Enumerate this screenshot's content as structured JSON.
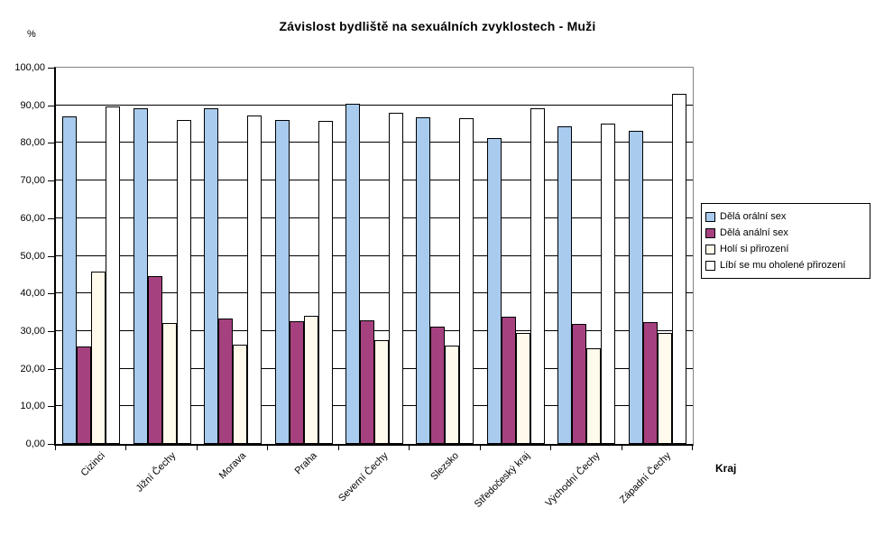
{
  "title": "Závislost bydliště na sexuálních zvyklostech - Muži",
  "chart_data": {
    "type": "bar",
    "title": "Závislost bydliště na sexuálních zvyklostech - Muži",
    "xlabel": "Kraj",
    "ylabel": "%",
    "ylim": [
      0,
      100
    ],
    "grid": true,
    "legend_position": "right",
    "y_ticks": [
      "100,00",
      "90,00",
      "80,00",
      "70,00",
      "60,00",
      "50,00",
      "40,00",
      "30,00",
      "20,00",
      "10,00",
      "0,00"
    ],
    "categories": [
      "Cizinci",
      "Jižní Čechy",
      "Morava",
      "Praha",
      "Severní Čechy",
      "Slezsko",
      "Středočeský kraj",
      "Východní Čechy",
      "Západní Čechy"
    ],
    "series": [
      {
        "name": "Dělá orální sex",
        "color": "#A8CBEE",
        "values": [
          87.0,
          89.2,
          89.2,
          86.2,
          90.5,
          86.8,
          81.3,
          84.5,
          83.1
        ]
      },
      {
        "name": "Dělá anální sex",
        "color": "#A6417F",
        "values": [
          26.0,
          44.6,
          33.4,
          32.7,
          32.9,
          31.1,
          33.7,
          32.0,
          32.3
        ]
      },
      {
        "name": "Holí si přirození",
        "color": "#FFFAEC",
        "values": [
          45.8,
          32.2,
          26.3,
          34.0,
          27.5,
          26.2,
          29.4,
          25.5,
          29.5
        ]
      },
      {
        "name": "Líbí se mu oholené přirození",
        "color": "#FFFFFF",
        "values": [
          89.7,
          86.1,
          87.4,
          85.8,
          88.0,
          86.6,
          89.2,
          85.2,
          93.0
        ]
      }
    ]
  },
  "colors": {
    "gridline": "#000000",
    "plot_border_light": "#848484",
    "background": "#FFFFFF"
  }
}
